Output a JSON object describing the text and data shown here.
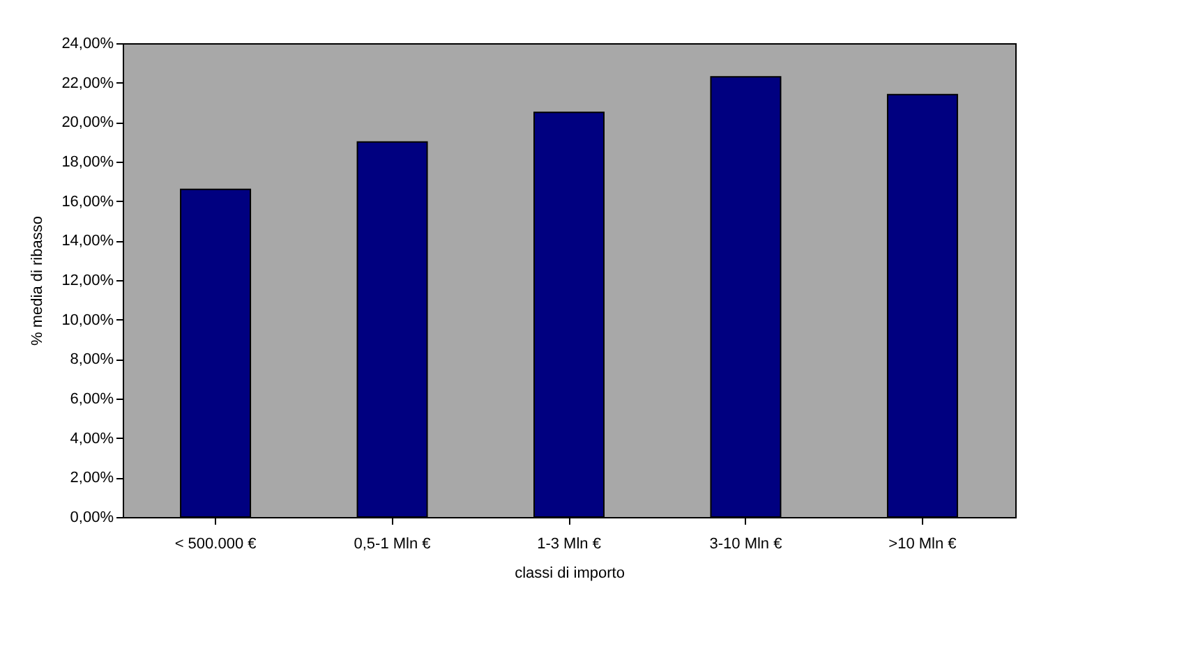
{
  "chart_data": {
    "type": "bar",
    "xlabel": "classi di importo",
    "ylabel": "% media di ribasso",
    "categories": [
      "< 500.000 €",
      "0,5-1 Mln €",
      "1-3 Mln €",
      "3-10 Mln €",
      ">10 Mln €"
    ],
    "values": [
      16.6,
      19.0,
      20.5,
      22.3,
      21.4
    ],
    "color": "#000080",
    "ylim": [
      0,
      24
    ],
    "yticks": [
      {
        "value": 0,
        "label": "0,00%"
      },
      {
        "value": 2,
        "label": "2,00%"
      },
      {
        "value": 4,
        "label": "4,00%"
      },
      {
        "value": 6,
        "label": "6,00%"
      },
      {
        "value": 8,
        "label": "8,00%"
      },
      {
        "value": 10,
        "label": "10,00%"
      },
      {
        "value": 12,
        "label": "12,00%"
      },
      {
        "value": 14,
        "label": "14,00%"
      },
      {
        "value": 16,
        "label": "16,00%"
      },
      {
        "value": 18,
        "label": "18,00%"
      },
      {
        "value": 20,
        "label": "20,00%"
      },
      {
        "value": 22,
        "label": "22,00%"
      },
      {
        "value": 24,
        "label": "24,00%"
      }
    ],
    "grid": false
  }
}
